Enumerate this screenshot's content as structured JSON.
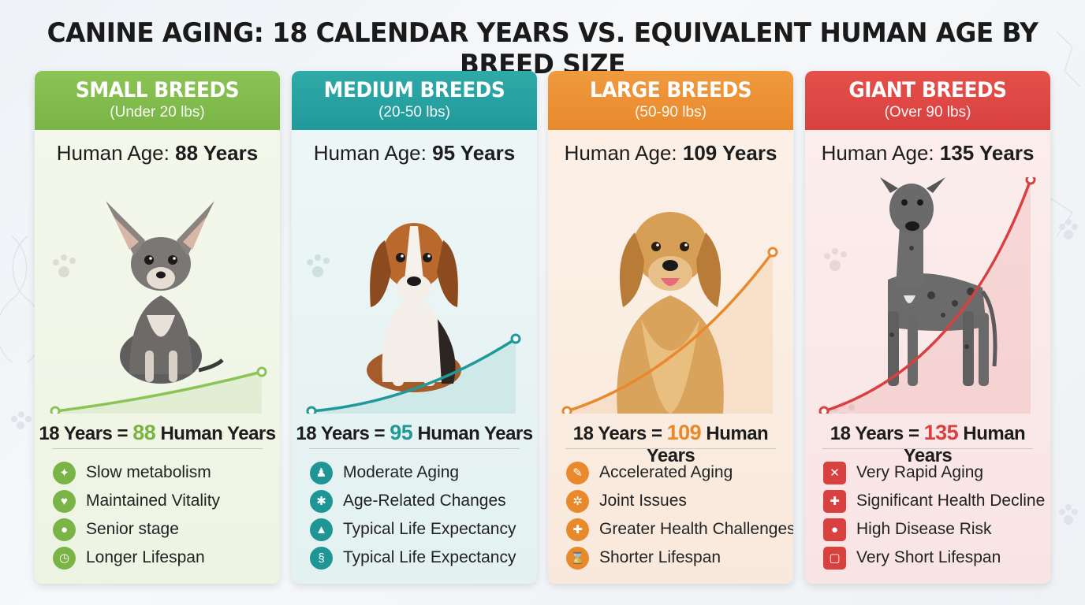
{
  "title": "CANINE AGING: 18 CALENDAR YEARS VS. EQUIVALENT HUMAN AGE BY BREED SIZE",
  "cards": [
    {
      "name": "SMALL BREEDS",
      "weight": "(Under 20 lbs)",
      "human_age_label": "Human Age:",
      "human_age_value": "88 Years",
      "equation_prefix": "18 Years =",
      "equation_value": "88",
      "equation_suffix": "Human Years",
      "accent": "#7ab446",
      "features": [
        {
          "label": "Slow metabolism",
          "icon": "dog-walk-icon",
          "glyph": "✦"
        },
        {
          "label": "Maintained Vitality",
          "icon": "leaf-icon",
          "glyph": "♥"
        },
        {
          "label": "Senior stage",
          "icon": "paw-icon",
          "glyph": "●"
        },
        {
          "label": "Longer Lifespan",
          "icon": "clock-icon",
          "glyph": "◷"
        }
      ]
    },
    {
      "name": "MEDIUM BREEDS",
      "weight": "(20-50 lbs)",
      "human_age_label": "Human Age:",
      "human_age_value": "95 Years",
      "equation_prefix": "18 Years =",
      "equation_value": "95",
      "equation_suffix": "Human Years",
      "accent": "#21999a",
      "features": [
        {
          "label": "Moderate Aging",
          "icon": "person-icon",
          "glyph": "♟"
        },
        {
          "label": "Age-Related Changes",
          "icon": "molecule-icon",
          "glyph": "✱"
        },
        {
          "label": "Typical Life Expectancy",
          "icon": "bar-chart-icon",
          "glyph": "▲"
        },
        {
          "label": "Typical Life Expectancy",
          "icon": "dna-icon",
          "glyph": "§"
        }
      ]
    },
    {
      "name": "LARGE BREEDS",
      "weight": "(50-90 lbs)",
      "human_age_label": "Human Age:",
      "human_age_value": "109 Years",
      "equation_prefix": "18 Years =",
      "equation_value": "109",
      "equation_suffix": "Human Years",
      "accent": "#e8892c",
      "features": [
        {
          "label": "Accelerated Aging",
          "icon": "syringe-icon",
          "glyph": "✎"
        },
        {
          "label": "Joint Issues",
          "icon": "joint-icon",
          "glyph": "✲"
        },
        {
          "label": "Greater Health Challenges",
          "icon": "health-icon",
          "glyph": "✚"
        },
        {
          "label": "Shorter Lifespan",
          "icon": "hourglass-icon",
          "glyph": "⌛"
        }
      ]
    },
    {
      "name": "GIANT BREEDS",
      "weight": "(Over 90 lbs)",
      "human_age_label": "Human Age:",
      "human_age_value": "135 Years",
      "equation_prefix": "18 Years =",
      "equation_value": "135",
      "equation_suffix": "Human Years",
      "accent": "#d94040",
      "features": [
        {
          "label": "Very Rapid Aging",
          "icon": "bandage-icon",
          "glyph": "✕"
        },
        {
          "label": "Significant Health Decline",
          "icon": "medical-kit-icon",
          "glyph": "✚"
        },
        {
          "label": "High Disease Risk",
          "icon": "paw-icon",
          "glyph": "●"
        },
        {
          "label": "Very Short Lifespan",
          "icon": "calendar-icon",
          "glyph": "▢"
        }
      ]
    }
  ]
}
